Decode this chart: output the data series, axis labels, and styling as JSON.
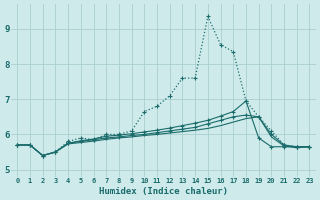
{
  "xlabel": "Humidex (Indice chaleur)",
  "xlim": [
    -0.5,
    23.5
  ],
  "ylim": [
    4.8,
    9.7
  ],
  "yticks": [
    5,
    6,
    7,
    8,
    9
  ],
  "xticks": [
    0,
    1,
    2,
    3,
    4,
    5,
    6,
    7,
    8,
    9,
    10,
    11,
    12,
    13,
    14,
    15,
    16,
    17,
    18,
    19,
    20,
    21,
    22,
    23
  ],
  "background_color": "#ceeaea",
  "grid_color": "#aacfcf",
  "line_color": "#1a6b6b",
  "series": [
    {
      "y": [
        5.7,
        5.7,
        5.4,
        5.5,
        5.8,
        5.9,
        5.85,
        6.0,
        6.0,
        6.1,
        6.65,
        6.8,
        7.1,
        7.6,
        7.6,
        9.35,
        8.55,
        8.35,
        6.95,
        6.5,
        6.1,
        5.7,
        5.65,
        5.65
      ],
      "linestyle": ":",
      "linewidth": 0.9,
      "marker": "+"
    },
    {
      "y": [
        5.7,
        5.7,
        5.4,
        5.5,
        5.75,
        5.82,
        5.87,
        5.95,
        5.98,
        6.02,
        6.07,
        6.12,
        6.18,
        6.25,
        6.32,
        6.4,
        6.52,
        6.65,
        6.95,
        5.9,
        5.65,
        5.65,
        5.65,
        5.65
      ],
      "linestyle": "-",
      "linewidth": 0.8,
      "marker": "+"
    },
    {
      "y": [
        5.7,
        5.7,
        5.4,
        5.5,
        5.75,
        5.8,
        5.85,
        5.9,
        5.93,
        5.97,
        6.0,
        6.05,
        6.1,
        6.15,
        6.2,
        6.3,
        6.4,
        6.5,
        6.55,
        6.5,
        6.0,
        5.7,
        5.65,
        5.65
      ],
      "linestyle": "-",
      "linewidth": 0.8,
      "marker": "+"
    },
    {
      "y": [
        5.7,
        5.7,
        5.4,
        5.5,
        5.73,
        5.77,
        5.81,
        5.86,
        5.9,
        5.93,
        5.97,
        6.0,
        6.04,
        6.08,
        6.12,
        6.17,
        6.25,
        6.35,
        6.45,
        6.5,
        5.93,
        5.67,
        5.62,
        5.65
      ],
      "linestyle": "-",
      "linewidth": 0.8,
      "marker": null
    }
  ]
}
